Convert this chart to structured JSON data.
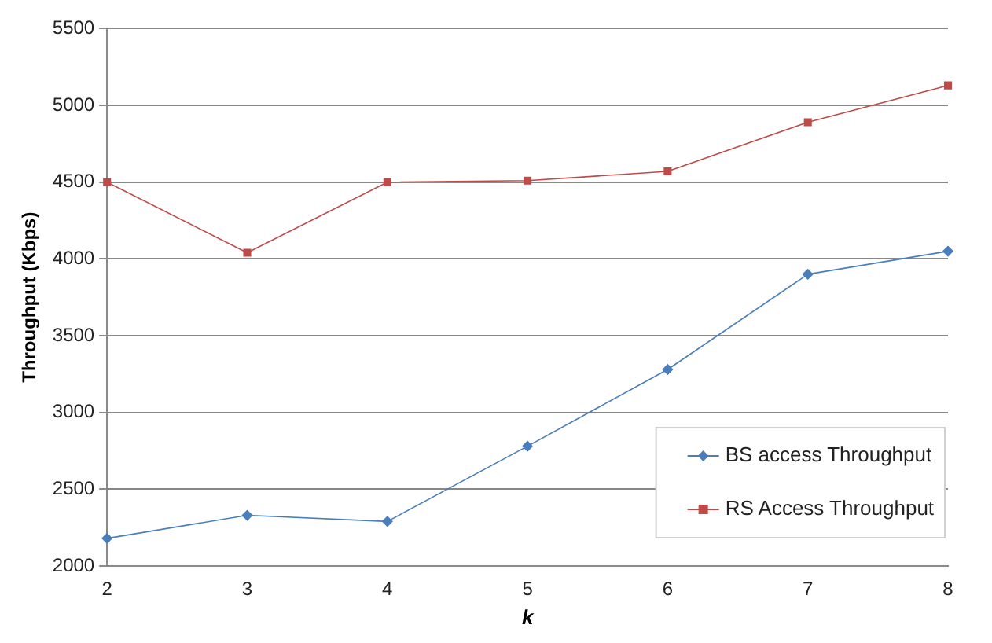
{
  "chart_data": {
    "type": "line",
    "xlabel": "k",
    "ylabel": "Throughput (Kbps)",
    "categories": [
      "2",
      "3",
      "4",
      "5",
      "6",
      "7",
      "8"
    ],
    "series": [
      {
        "name": "BS access Throughput",
        "color": "#4a7ebb",
        "marker": "diamond",
        "values": [
          2180,
          2330,
          2290,
          2780,
          3280,
          3900,
          4050
        ]
      },
      {
        "name": "RS Access Throughput",
        "color": "#be4b48",
        "marker": "square",
        "values": [
          4500,
          4040,
          4500,
          4510,
          4570,
          4890,
          5130
        ]
      }
    ],
    "ylim": [
      2000,
      5500
    ],
    "yticks": [
      2000,
      2500,
      3000,
      3500,
      4000,
      4500,
      5000,
      5500
    ],
    "grid": "y",
    "legend": "bottom right",
    "line_style": "solid"
  }
}
